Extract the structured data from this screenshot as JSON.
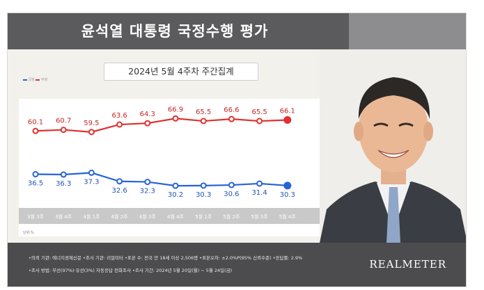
{
  "header": {
    "title": "윤석열 대통령 국정수행 평가",
    "subtitle": "2024년 5월 4주차 주간집계"
  },
  "legend": {
    "positive": "긍정",
    "negative": "부정"
  },
  "colors": {
    "positive": "#2563d9",
    "negative": "#e03030",
    "header": "#5b5b5d",
    "footer": "#4c4c4e"
  },
  "chart_data": {
    "type": "line",
    "categories": [
      "3월 3주",
      "3월 4주",
      "4월 1주",
      "4월 2주",
      "4월 3주",
      "4월 4주",
      "5월 1주",
      "5월 2주",
      "5월 3주",
      "5월 4주"
    ],
    "series": [
      {
        "name": "부정",
        "color": "#e03030",
        "values": [
          60.1,
          60.7,
          59.5,
          63.6,
          64.3,
          66.9,
          65.5,
          66.6,
          65.5,
          66.1
        ]
      },
      {
        "name": "긍정",
        "color": "#2563d9",
        "values": [
          36.5,
          36.3,
          37.3,
          32.6,
          32.3,
          30.2,
          30.3,
          30.6,
          31.4,
          30.3
        ]
      }
    ],
    "ylim": [
      20,
      75
    ],
    "grid": false,
    "legend_position": "top-left"
  },
  "note": "단위:%",
  "footer": {
    "line1": "•의뢰 기관: 에너지경제신문 •조사 기관: 리얼미터 •표본 수: 전국 만 18세 이상 2,506명 •표본오차: ±2.0%P(95% 신뢰수준) •응답률: 2.9%",
    "line2": "•조사 방법: 무선(97%)·유선(3%) 자동응답 전화조사 •조사 기간: 2024년 5월 20일(월) ~ 5월 24일(금)",
    "brand": "REALMETER"
  }
}
